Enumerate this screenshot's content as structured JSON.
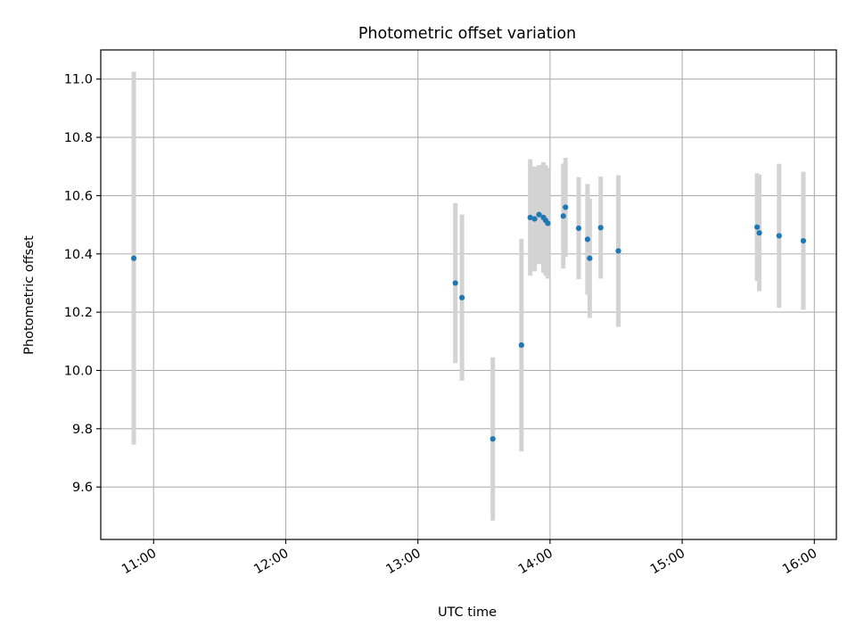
{
  "chart_data": {
    "type": "scatter",
    "title": "Photometric offset variation",
    "xlabel": "UTC time",
    "ylabel": "Photometric offset",
    "x_ticks": [
      "11:00",
      "12:00",
      "13:00",
      "14:00",
      "15:00",
      "16:00"
    ],
    "y_ticks": [
      "9.6",
      "9.8",
      "10.0",
      "10.2",
      "10.4",
      "10.6",
      "10.8",
      "11.0"
    ],
    "xlim": [
      "10:36",
      "16:10"
    ],
    "ylim": [
      9.42,
      11.1
    ],
    "grid": true,
    "colors": {
      "marker": "#1f77b4",
      "errorbar": "#d3d3d3",
      "grid": "#b0b0b0"
    },
    "series": [
      {
        "points": [
          {
            "x": "10:51",
            "y": 10.385,
            "err": 0.64
          },
          {
            "x": "13:17",
            "y": 10.3,
            "err": 0.275
          },
          {
            "x": "13:20",
            "y": 10.25,
            "err": 0.285
          },
          {
            "x": "13:34",
            "y": 9.765,
            "err": 0.28
          },
          {
            "x": "13:47",
            "y": 10.087,
            "err": 0.365
          },
          {
            "x": "13:51",
            "y": 10.525,
            "err": 0.2
          },
          {
            "x": "13:53",
            "y": 10.52,
            "err": 0.18
          },
          {
            "x": "13:55",
            "y": 10.535,
            "err": 0.17
          },
          {
            "x": "13:57",
            "y": 10.525,
            "err": 0.19
          },
          {
            "x": "13:58",
            "y": 10.515,
            "err": 0.19
          },
          {
            "x": "13:59",
            "y": 10.505,
            "err": 0.19
          },
          {
            "x": "14:06",
            "y": 10.53,
            "err": 0.18
          },
          {
            "x": "14:07",
            "y": 10.56,
            "err": 0.17
          },
          {
            "x": "14:13",
            "y": 10.488,
            "err": 0.175
          },
          {
            "x": "14:17",
            "y": 10.45,
            "err": 0.19
          },
          {
            "x": "14:18",
            "y": 10.385,
            "err": 0.205
          },
          {
            "x": "14:23",
            "y": 10.49,
            "err": 0.175
          },
          {
            "x": "14:31",
            "y": 10.41,
            "err": 0.26
          },
          {
            "x": "15:34",
            "y": 10.492,
            "err": 0.185
          },
          {
            "x": "15:35",
            "y": 10.472,
            "err": 0.2
          },
          {
            "x": "15:44",
            "y": 10.462,
            "err": 0.247
          },
          {
            "x": "15:55",
            "y": 10.445,
            "err": 0.237
          }
        ]
      }
    ]
  }
}
